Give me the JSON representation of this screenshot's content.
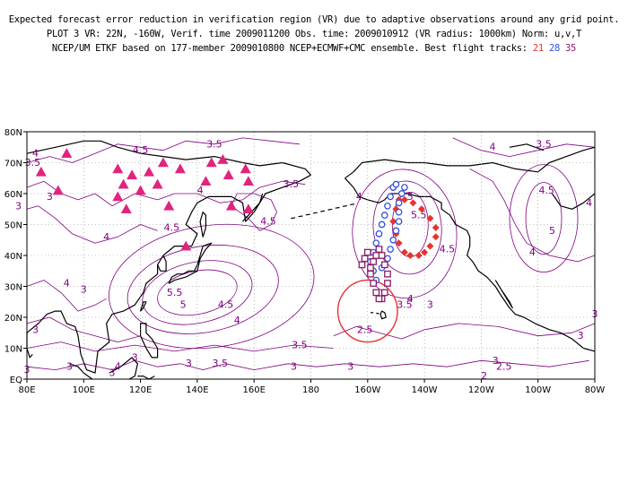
{
  "header": {
    "line1": "Expected forecast error reduction in verification region (VR) due to adaptive observations around any grid point.",
    "line2": "PLOT 3 VR: 22N, -160W, Verif. time 2009011200 Obs. time: 2009010912 (VR radius: 1000km) Norm: u,v,T",
    "line3_prefix": "NCEP/UM ETKF based on 177-member 2009010800 NCEP+ECMWF+CMC ensemble. Best flight tracks:",
    "tracks": [
      {
        "label": "21",
        "color": "#e8332e"
      },
      {
        "label": "28",
        "color": "#3050e0"
      },
      {
        "label": "35",
        "color": "#8a1a6a"
      }
    ]
  },
  "map": {
    "x_ticks": [
      "80E",
      "100E",
      "120E",
      "140E",
      "160E",
      "180",
      "160W",
      "140W",
      "120W",
      "100W",
      "80W"
    ],
    "y_ticks": [
      "EQ",
      "10N",
      "20N",
      "30N",
      "40N",
      "50N",
      "60N",
      "70N",
      "80N"
    ],
    "lon_range": [
      80,
      280
    ],
    "lat_range": [
      0,
      80
    ],
    "contour_color": "#800080",
    "contour_labels": [
      {
        "text": "4.5",
        "lon": 120,
        "lat": 73
      },
      {
        "text": "3.5",
        "lon": 82,
        "lat": 69
      },
      {
        "text": "4",
        "lon": 83,
        "lat": 72
      },
      {
        "text": "3",
        "lon": 88,
        "lat": 58
      },
      {
        "text": "3",
        "lon": 77,
        "lat": 55
      },
      {
        "text": "4",
        "lon": 108,
        "lat": 45
      },
      {
        "text": "3.5",
        "lon": 146,
        "lat": 75
      },
      {
        "text": "4",
        "lon": 141,
        "lat": 60
      },
      {
        "text": "4.5",
        "lon": 131,
        "lat": 48
      },
      {
        "text": "3.5",
        "lon": 173,
        "lat": 62
      },
      {
        "text": "4.5",
        "lon": 165,
        "lat": 50
      },
      {
        "text": "5.5",
        "lon": 132,
        "lat": 27
      },
      {
        "text": "5",
        "lon": 135,
        "lat": 23
      },
      {
        "text": "4.5",
        "lon": 150,
        "lat": 23
      },
      {
        "text": "4",
        "lon": 154,
        "lat": 18
      },
      {
        "text": "4",
        "lon": 94,
        "lat": 30
      },
      {
        "text": "3",
        "lon": 100,
        "lat": 28
      },
      {
        "text": "3",
        "lon": 83,
        "lat": 15
      },
      {
        "text": "3",
        "lon": 80,
        "lat": 2
      },
      {
        "text": "3",
        "lon": 95,
        "lat": 3
      },
      {
        "text": "3",
        "lon": 110,
        "lat": 1
      },
      {
        "text": "3",
        "lon": 118,
        "lat": 6
      },
      {
        "text": "4",
        "lon": 112,
        "lat": 3
      },
      {
        "text": "3",
        "lon": 137,
        "lat": 4
      },
      {
        "text": "3.5",
        "lon": 148,
        "lat": 4
      },
      {
        "text": "3.5",
        "lon": 176,
        "lat": 10
      },
      {
        "text": "3",
        "lon": 174,
        "lat": 3
      },
      {
        "text": "3",
        "lon": 194,
        "lat": 3
      },
      {
        "text": "2.5",
        "lon": 199,
        "lat": 15
      },
      {
        "text": "3.5",
        "lon": 213,
        "lat": 23
      },
      {
        "text": "3",
        "lon": 222,
        "lat": 23
      },
      {
        "text": "4",
        "lon": 215,
        "lat": 25
      },
      {
        "text": "4.5",
        "lon": 228,
        "lat": 41
      },
      {
        "text": "5",
        "lon": 215,
        "lat": 58
      },
      {
        "text": "5.5",
        "lon": 218,
        "lat": 52
      },
      {
        "text": "4",
        "lon": 197,
        "lat": 58
      },
      {
        "text": "4",
        "lon": 244,
        "lat": 74
      },
      {
        "text": "3.5",
        "lon": 262,
        "lat": 75
      },
      {
        "text": "4.5",
        "lon": 263,
        "lat": 60
      },
      {
        "text": "5",
        "lon": 265,
        "lat": 47
      },
      {
        "text": "4",
        "lon": 278,
        "lat": 56
      },
      {
        "text": "4",
        "lon": 258,
        "lat": 40
      },
      {
        "text": "3",
        "lon": 280,
        "lat": 20
      },
      {
        "text": "3",
        "lon": 275,
        "lat": 13
      },
      {
        "text": "3",
        "lon": 245,
        "lat": 5
      },
      {
        "text": "2.5",
        "lon": 248,
        "lat": 3
      },
      {
        "text": "2",
        "lon": 241,
        "lat": 0
      }
    ],
    "triangles": [
      [
        85,
        67
      ],
      [
        94,
        73
      ],
      [
        91,
        61
      ],
      [
        112,
        68
      ],
      [
        114,
        63
      ],
      [
        117,
        66
      ],
      [
        112,
        59
      ],
      [
        115,
        55
      ],
      [
        123,
        67
      ],
      [
        120,
        61
      ],
      [
        126,
        63
      ],
      [
        128,
        70
      ],
      [
        134,
        68
      ],
      [
        143,
        64
      ],
      [
        145,
        70
      ],
      [
        149,
        71
      ],
      [
        151,
        66
      ],
      [
        157,
        68
      ],
      [
        158,
        64
      ],
      [
        158,
        55
      ],
      [
        152,
        56
      ],
      [
        130,
        56
      ],
      [
        136,
        43
      ]
    ],
    "verification_region": {
      "lon": 200,
      "lat": 22,
      "radius_deg": 10
    },
    "track_red": [
      [
        211,
        58
      ],
      [
        210,
        55
      ],
      [
        209,
        51
      ],
      [
        210,
        47
      ],
      [
        211,
        44
      ],
      [
        213,
        41
      ],
      [
        215,
        40
      ],
      [
        218,
        40
      ],
      [
        220,
        41
      ],
      [
        222,
        43
      ],
      [
        224,
        46
      ],
      [
        224,
        49
      ],
      [
        222,
        52
      ],
      [
        219,
        55
      ],
      [
        216,
        57
      ],
      [
        213,
        58
      ]
    ],
    "track_blue": [
      [
        209,
        62
      ],
      [
        208,
        59
      ],
      [
        207,
        56
      ],
      [
        206,
        53
      ],
      [
        205,
        50
      ],
      [
        204,
        47
      ],
      [
        203,
        44
      ],
      [
        202,
        41
      ],
      [
        201,
        38
      ],
      [
        202,
        35
      ],
      [
        203,
        32
      ],
      [
        205,
        36
      ],
      [
        207,
        39
      ],
      [
        208,
        42
      ],
      [
        209,
        45
      ],
      [
        210,
        48
      ],
      [
        211,
        51
      ],
      [
        211,
        54
      ],
      [
        211,
        57
      ],
      [
        212,
        60
      ],
      [
        213,
        62
      ],
      [
        210,
        63
      ]
    ],
    "track_purple": [
      [
        202,
        38
      ],
      [
        203,
        40
      ],
      [
        204,
        42
      ],
      [
        205,
        40
      ],
      [
        206,
        37
      ],
      [
        207,
        34
      ],
      [
        207,
        31
      ],
      [
        206,
        28
      ],
      [
        205,
        26
      ],
      [
        204,
        26
      ],
      [
        203,
        28
      ],
      [
        202,
        31
      ],
      [
        201,
        34
      ],
      [
        201,
        36
      ],
      [
        199,
        39
      ],
      [
        198,
        37
      ],
      [
        200,
        41
      ]
    ]
  }
}
